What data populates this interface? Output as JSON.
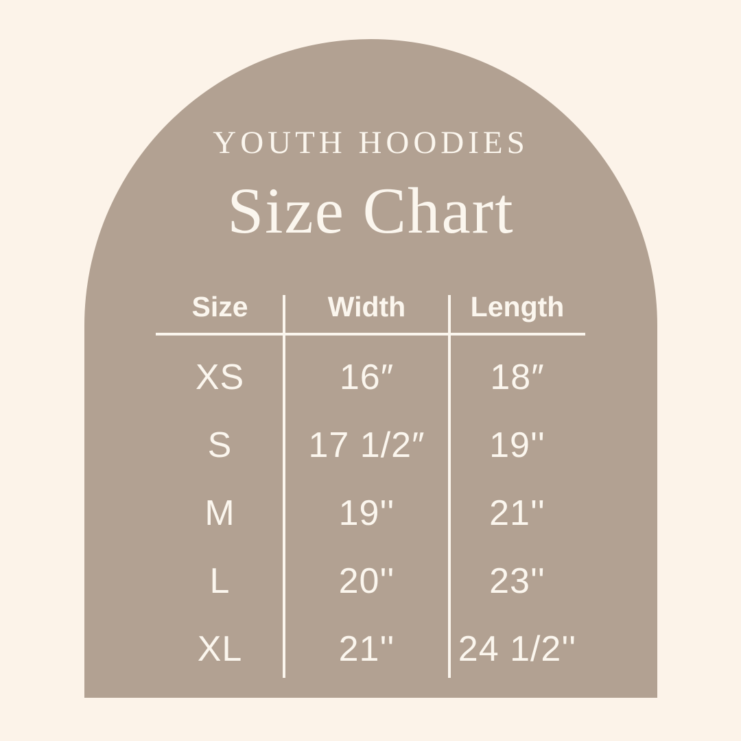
{
  "colors": {
    "background": "#FCF3E9",
    "arch": "#B2A192",
    "text": "#FBF6EE",
    "line": "#FBF6EE"
  },
  "header": {
    "category": "YOUTH HOODIES",
    "title": "Size Chart"
  },
  "table": {
    "columns": [
      "Size",
      "Width",
      "Length"
    ],
    "rows": [
      {
        "size": "XS",
        "width": "16″",
        "length": "18″"
      },
      {
        "size": "S",
        "width": "17 1/2″",
        "length": "19''"
      },
      {
        "size": "M",
        "width": "19''",
        "length": "21''"
      },
      {
        "size": "L",
        "width": "20''",
        "length": "23''"
      },
      {
        "size": "XL",
        "width": "21''",
        "length": "24 1/2''"
      }
    ]
  },
  "chart_data": {
    "type": "table",
    "title": "Size Chart",
    "subtitle": "YOUTH HOODIES",
    "columns": [
      "Size",
      "Width",
      "Length"
    ],
    "rows": [
      [
        "XS",
        "16″",
        "18″"
      ],
      [
        "S",
        "17 1/2″",
        "19''"
      ],
      [
        "M",
        "19''",
        "21''"
      ],
      [
        "L",
        "20''",
        "23''"
      ],
      [
        "XL",
        "21''",
        "24 1/2''"
      ]
    ]
  }
}
